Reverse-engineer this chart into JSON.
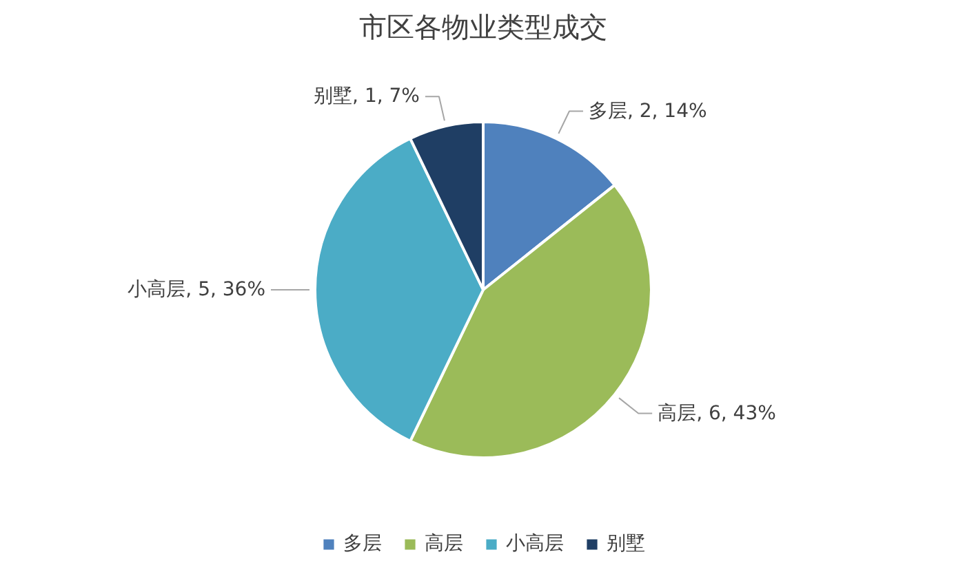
{
  "chart_data": {
    "type": "pie",
    "title": "市区各物业类型成交",
    "categories": [
      "多层",
      "高层",
      "小高层",
      "别墅"
    ],
    "values": [
      2,
      6,
      5,
      1
    ],
    "colors": [
      "#4f81bd",
      "#9bbb59",
      "#4bacc6",
      "#1f3e64"
    ],
    "value_labels": [
      "多层, 2, 14%",
      "高层, 6, 43%",
      "小高层, 5, 36%",
      "别墅, 1, 7%"
    ],
    "legend": "bottom"
  }
}
